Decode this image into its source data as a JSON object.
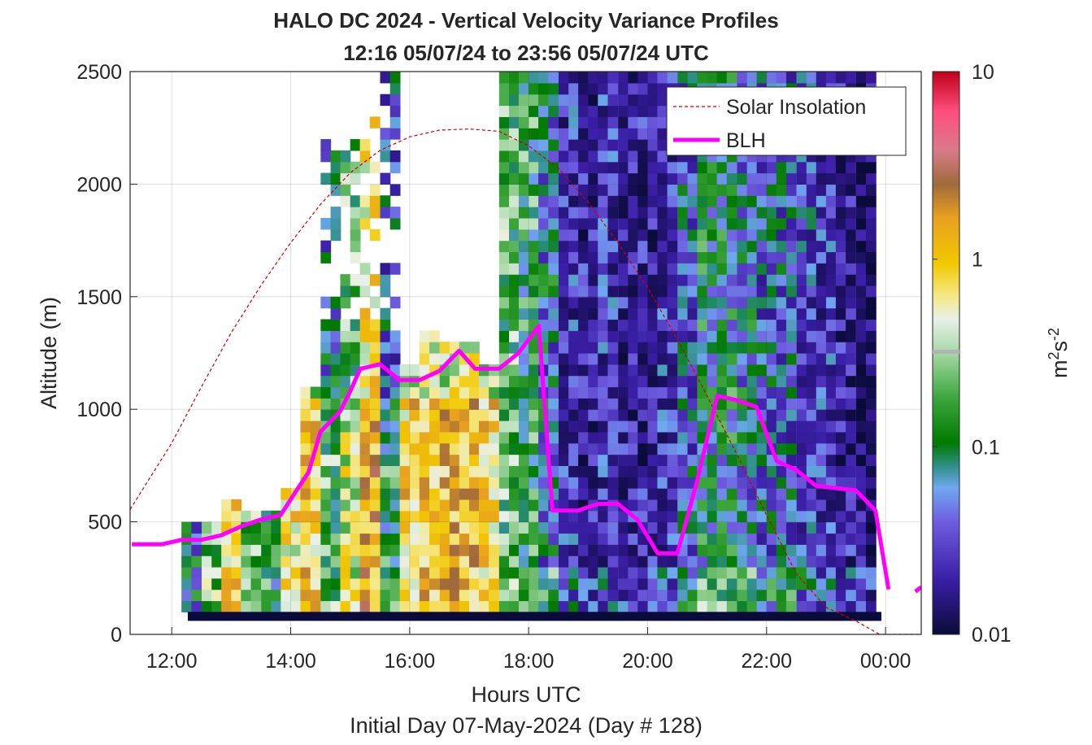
{
  "chart_data": {
    "type": "heatmap",
    "title_line1": "HALO DC 2024 - Vertical Velocity Variance Profiles",
    "title_line2": "12:16 05/07/24 to 23:56 05/07/24  UTC",
    "xlabel": "Hours UTC",
    "xlabel2": "Initial Day 07-May-2024 (Day # 128)",
    "ylabel": "Altitude (m)",
    "colorbar_label_base": "m",
    "colorbar_label_sup1": "2",
    "colorbar_label_mid": "s",
    "colorbar_label_sup2": "-2",
    "xlim": [
      11.3,
      24.6
    ],
    "ylim": [
      0,
      2500
    ],
    "x_ticks": [
      12,
      14,
      16,
      18,
      20,
      22,
      24
    ],
    "x_tick_labels": [
      "12:00",
      "14:00",
      "16:00",
      "18:00",
      "20:00",
      "22:00",
      "00:00"
    ],
    "y_ticks": [
      0,
      500,
      1000,
      1500,
      2000,
      2500
    ],
    "y_tick_labels": [
      "0",
      "500",
      "1000",
      "1500",
      "2000",
      "2500"
    ],
    "grid": true,
    "colorbar": {
      "scale": "log",
      "range": [
        0.01,
        10
      ],
      "ticks": [
        0.01,
        0.1,
        1,
        10
      ],
      "tick_labels": [
        "0.01",
        "0.1",
        "1",
        "10"
      ]
    },
    "legend": {
      "placement": "top-right",
      "entries": [
        {
          "label": "Solar Insolation",
          "color": "#cc0000",
          "style": "dashed"
        },
        {
          "label": "BLH",
          "color": "#ff00ff",
          "style": "solid"
        }
      ]
    },
    "series": [
      {
        "name": "BLH",
        "color": "#ff00ff",
        "x": [
          11.33,
          11.83,
          12.17,
          12.5,
          12.83,
          13.17,
          13.5,
          13.83,
          14.1,
          14.3,
          14.5,
          14.83,
          15.0,
          15.17,
          15.5,
          15.83,
          16.17,
          16.5,
          16.83,
          17.1,
          17.5,
          17.83,
          18.17,
          18.4,
          18.83,
          19.17,
          19.5,
          19.83,
          20.17,
          20.5,
          20.83,
          21.17,
          21.5,
          21.83,
          22.17,
          22.5,
          22.83,
          23.17,
          23.5,
          23.83,
          24.05,
          24.5,
          24.6
        ],
        "y": [
          400,
          400,
          420,
          420,
          440,
          480,
          510,
          530,
          640,
          720,
          900,
          990,
          1080,
          1180,
          1200,
          1130,
          1130,
          1170,
          1260,
          1180,
          1180,
          1250,
          1370,
          550,
          550,
          580,
          580,
          510,
          360,
          360,
          680,
          1060,
          1040,
          1010,
          770,
          730,
          660,
          650,
          640,
          550,
          200,
          190,
          210
        ],
        "gaps_after_x": [
          24.05
        ]
      },
      {
        "name": "Solar Insolation",
        "color": "#cc0000",
        "x": [
          11.3,
          12.0,
          12.5,
          13.0,
          13.5,
          14.0,
          14.5,
          15.0,
          15.5,
          16.0,
          16.5,
          17.0,
          17.5,
          18.0,
          18.5,
          19.0,
          19.5,
          20.0,
          20.5,
          21.0,
          21.5,
          22.0,
          22.5,
          23.0,
          23.5,
          23.9,
          24.1,
          24.6
        ],
        "y": [
          555,
          850,
          1100,
          1340,
          1550,
          1740,
          1910,
          2050,
          2150,
          2210,
          2240,
          2245,
          2235,
          2170,
          2070,
          1920,
          1740,
          1540,
          1310,
          1060,
          800,
          530,
          270,
          120,
          60,
          0,
          0,
          0
        ]
      },
      {
        "name": "vertical_velocity_variance",
        "x_bin_width_hours": 0.1667,
        "alt_bin_height_m": 50,
        "alt_min_m": 100,
        "time_start_hours": 12.27,
        "time_end_hours": 23.93,
        "profiles": [
          {
            "t": 12.33,
            "top": 470,
            "log_level": -1.3
          },
          {
            "t": 12.67,
            "top": 470,
            "log_level": -0.9
          },
          {
            "t": 13.0,
            "top": 570,
            "log_level": -0.5
          },
          {
            "t": 13.33,
            "top": 520,
            "log_level": -0.9
          },
          {
            "t": 13.67,
            "top": 530,
            "log_level": -1.1
          },
          {
            "t": 14.0,
            "top": 620,
            "log_level": -0.6
          },
          {
            "t": 14.33,
            "top": 1060,
            "log_level": -0.5
          },
          {
            "t": 14.67,
            "top": 2160,
            "log_level": -1.0
          },
          {
            "t": 15.0,
            "top": 2160,
            "log_level": -0.7
          },
          {
            "t": 15.33,
            "top": 2300,
            "log_level": -0.3
          },
          {
            "t": 15.67,
            "top": 2500,
            "log_level": -1.1
          },
          {
            "t": 16.0,
            "top": 1200,
            "log_level": -0.5
          },
          {
            "t": 16.33,
            "top": 1350,
            "log_level": -0.4
          },
          {
            "t": 16.67,
            "top": 1260,
            "log_level": -0.4
          },
          {
            "t": 17.0,
            "top": 1260,
            "log_level": -0.4
          },
          {
            "t": 17.33,
            "top": 1200,
            "log_level": -0.5
          },
          {
            "t": 17.67,
            "top": 2500,
            "log_level": -1.0
          },
          {
            "t": 18.0,
            "top": 2500,
            "log_level": -1.1
          },
          {
            "t": 18.33,
            "top": 2500,
            "log_level": -1.3
          },
          {
            "t": 18.67,
            "top": 2500,
            "log_level": -1.6
          },
          {
            "t": 19.0,
            "top": 2500,
            "log_level": -1.7
          },
          {
            "t": 19.33,
            "top": 2500,
            "log_level": -1.6
          },
          {
            "t": 19.67,
            "top": 2500,
            "log_level": -1.7
          },
          {
            "t": 20.0,
            "top": 2500,
            "log_level": -1.7
          },
          {
            "t": 20.33,
            "top": 2500,
            "log_level": -1.6
          },
          {
            "t": 20.67,
            "top": 2500,
            "log_level": -1.4
          },
          {
            "t": 21.0,
            "top": 2500,
            "log_level": -1.2
          },
          {
            "t": 21.33,
            "top": 2500,
            "log_level": -1.2
          },
          {
            "t": 21.67,
            "top": 2500,
            "log_level": -1.3
          },
          {
            "t": 22.0,
            "top": 2500,
            "log_level": -1.4
          },
          {
            "t": 22.33,
            "top": 2500,
            "log_level": -1.4
          },
          {
            "t": 22.67,
            "top": 2500,
            "log_level": -1.5
          },
          {
            "t": 23.0,
            "top": 2500,
            "log_level": -1.6
          },
          {
            "t": 23.33,
            "top": 2500,
            "log_level": -1.7
          },
          {
            "t": 23.67,
            "top": 2500,
            "log_level": -1.8
          }
        ]
      }
    ]
  }
}
